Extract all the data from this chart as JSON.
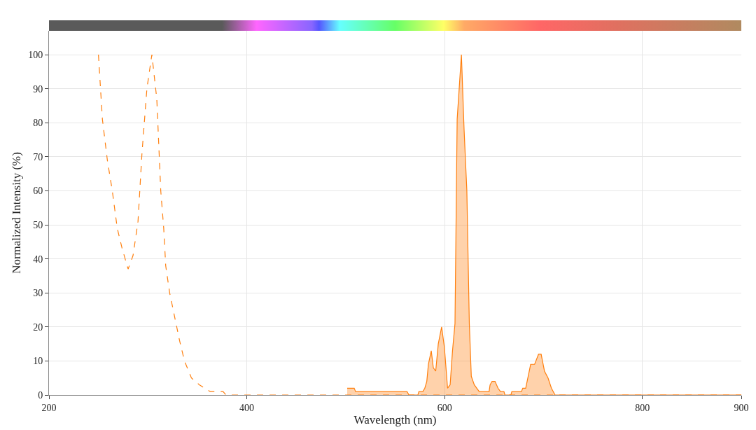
{
  "chart_data": {
    "type": "area",
    "xlabel": "Wavelength (nm)",
    "ylabel": "Normalized Intensity (%)",
    "xlim": [
      200,
      900
    ],
    "xticks": [
      200,
      400,
      600,
      800,
      900
    ],
    "ylim": [
      0,
      107
    ],
    "yticks": [
      0,
      10,
      20,
      30,
      40,
      50,
      60,
      70,
      80,
      90,
      100
    ],
    "grid": true,
    "series": [
      {
        "type": "line",
        "line_style": "dashed",
        "color": "#ff7f0e",
        "x": [
          250,
          254,
          259,
          264,
          269,
          274,
          280,
          285,
          290,
          294,
          299,
          304,
          309,
          313,
          316,
          318,
          322,
          327,
          332,
          337,
          344,
          352,
          363,
          376,
          379,
          900
        ],
        "values": [
          100,
          81,
          69,
          60,
          49,
          43,
          37,
          41,
          51,
          71,
          90,
          100,
          87,
          60,
          49,
          38,
          30,
          23,
          16,
          10,
          5,
          3,
          1,
          1,
          0,
          0
        ]
      },
      {
        "line_style": "solid",
        "color": "#ff7f0e",
        "x": [
          501.5,
          508.6,
          510,
          562,
          564,
          573,
          574,
          578,
          580,
          582,
          583.6,
          586.5,
          588.6,
          591,
          593.6,
          597,
          599.8,
          603,
          605.6,
          608,
          610.5,
          612.7,
          617,
          619.7,
          622.5,
          625,
          627,
          630,
          635,
          645,
          646,
          648,
          651,
          654,
          656.5,
          660,
          661,
          667,
          668,
          677.7,
          679,
          682,
          687,
          691,
          695,
          697.6,
          701,
          704.6,
          708,
          711.7,
          900
        ],
        "values": [
          2,
          2,
          1,
          1,
          0,
          0,
          1,
          1,
          2,
          4,
          9,
          13,
          8,
          7,
          15,
          20,
          14,
          2,
          3,
          13,
          21,
          81,
          100,
          78,
          60,
          21,
          5.5,
          3,
          1,
          1,
          3,
          4,
          4,
          2,
          1,
          1,
          0,
          0,
          1,
          1,
          2,
          2,
          9,
          9,
          12,
          12,
          7,
          5,
          2,
          0,
          0
        ]
      }
    ]
  }
}
